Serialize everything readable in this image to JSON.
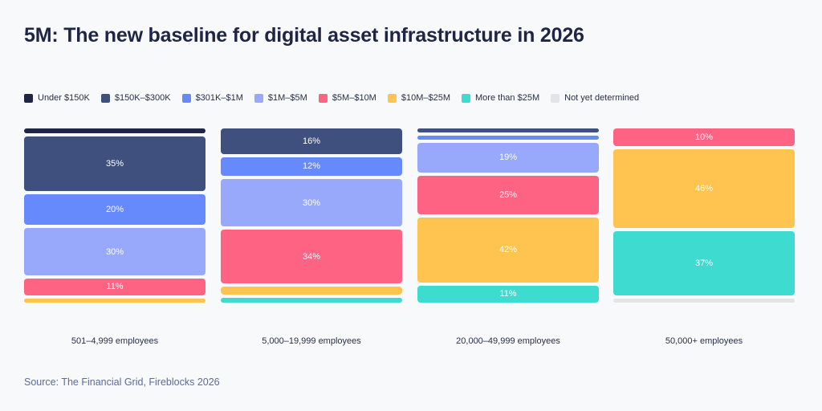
{
  "title": "5M: The new baseline for digital asset infrastructure in 2026",
  "source": "Source: The Financial Grid, Fireblocks 2026",
  "chart_data": {
    "type": "bar",
    "stacked": true,
    "normalized": true,
    "title": "5M: The new baseline for digital asset infrastructure in 2026",
    "legend_position": "top-left",
    "categories": [
      "501–4,999 employees",
      "5,000–19,999 employees",
      "20,000–49,999 employees",
      "50,000+ employees"
    ],
    "series": [
      {
        "name": "Under $150K",
        "color": "#1f2544",
        "values": [
          3,
          0,
          0,
          0
        ]
      },
      {
        "name": "$150K–$300K",
        "color": "#40507e",
        "values": [
          35,
          16,
          1,
          0
        ]
      },
      {
        "name": "$301K–$1M",
        "color": "#6689fc",
        "values": [
          20,
          12,
          2,
          0
        ]
      },
      {
        "name": "$1M–$5M",
        "color": "#98a9fb",
        "values": [
          30,
          30,
          19,
          0
        ]
      },
      {
        "name": "$5M–$10M",
        "color": "#fe6384",
        "values": [
          11,
          34,
          25,
          10
        ]
      },
      {
        "name": "$10M–$25M",
        "color": "#fec44f",
        "values": [
          1,
          5,
          42,
          46
        ]
      },
      {
        "name": "More than $25M",
        "color": "#3ddbd0",
        "values": [
          0,
          3,
          11,
          37
        ]
      },
      {
        "name": "Not yet determined",
        "color": "#e3e4e8",
        "values": [
          0,
          0,
          0,
          1
        ]
      }
    ],
    "label_threshold": 10
  }
}
